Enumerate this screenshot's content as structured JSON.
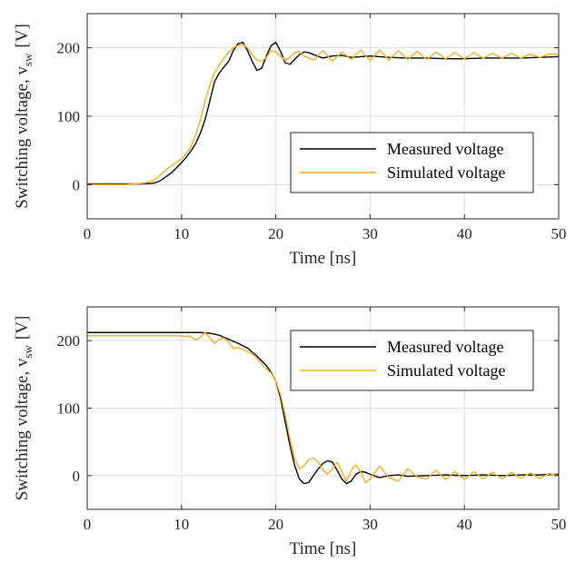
{
  "chart_data": [
    {
      "type": "line",
      "xlabel": "Time [ns]",
      "ylabel": "Switching voltage, v",
      "ylabel_sub": "sw",
      "ylabel_unit": "[V]",
      "xlim": [
        0,
        50
      ],
      "ylim": [
        -50,
        250
      ],
      "xticks": [
        0,
        10,
        20,
        30,
        40,
        50
      ],
      "yticks": [
        0,
        100,
        200
      ],
      "grid": true,
      "legend_position": "lower-right",
      "series": [
        {
          "name": "Measured voltage",
          "color": "#000000",
          "x": [
            0,
            2,
            4,
            6,
            7,
            7.5,
            8,
            8.5,
            9,
            9.5,
            10,
            10.5,
            11,
            11.5,
            12,
            12.5,
            13,
            13.5,
            14,
            14.5,
            15,
            15.5,
            16,
            16.5,
            17,
            17.5,
            18,
            18.5,
            19,
            19.5,
            20,
            20.5,
            21,
            21.5,
            22,
            22.5,
            23,
            23.5,
            24,
            25,
            26,
            27,
            28,
            30,
            32,
            34,
            36,
            38,
            40,
            42,
            44,
            46,
            48,
            50
          ],
          "y": [
            1,
            1,
            1,
            1,
            2,
            4,
            8,
            13,
            18,
            25,
            32,
            40,
            49,
            60,
            75,
            95,
            122,
            150,
            163,
            172,
            180,
            196,
            206,
            208,
            196,
            180,
            167,
            170,
            188,
            203,
            208,
            195,
            178,
            176,
            183,
            190,
            194,
            193,
            190,
            185,
            188,
            189,
            186,
            188,
            186,
            185,
            185,
            184,
            184,
            185,
            185,
            185,
            186,
            187
          ]
        },
        {
          "name": "Simulated voltage",
          "color": "#EDB120",
          "x": [
            0,
            2,
            4,
            6,
            7,
            7.5,
            8,
            8.5,
            9,
            9.5,
            10,
            10.5,
            11,
            11.5,
            12,
            12.5,
            13,
            13.5,
            14,
            14.5,
            15,
            15.5,
            16,
            16.5,
            17,
            17.5,
            18,
            18.5,
            19,
            19.5,
            20,
            20.5,
            21,
            21.5,
            22,
            22.5,
            23,
            24,
            25,
            26,
            27,
            28,
            29,
            30,
            31,
            32,
            33,
            34,
            35,
            36,
            37,
            38,
            39,
            40,
            41,
            42,
            43,
            44,
            45,
            46,
            47,
            48,
            49,
            50
          ],
          "y": [
            0,
            0,
            0,
            2,
            6,
            11,
            17,
            23,
            28,
            33,
            38,
            45,
            56,
            72,
            95,
            122,
            145,
            163,
            175,
            185,
            193,
            200,
            203,
            205,
            200,
            190,
            182,
            180,
            186,
            196,
            194,
            188,
            182,
            186,
            193,
            195,
            188,
            182,
            196,
            180,
            194,
            183,
            197,
            181,
            197,
            182,
            196,
            183,
            195,
            183,
            194,
            184,
            193,
            184,
            193,
            185,
            192,
            185,
            192,
            185,
            191,
            186,
            191,
            190
          ]
        }
      ]
    },
    {
      "type": "line",
      "xlabel": "Time [ns]",
      "ylabel": "Switching voltage, v",
      "ylabel_sub": "sw",
      "ylabel_unit": "[V]",
      "xlim": [
        0,
        50
      ],
      "ylim": [
        -50,
        250
      ],
      "xticks": [
        0,
        10,
        20,
        30,
        40,
        50
      ],
      "yticks": [
        0,
        100,
        200
      ],
      "grid": true,
      "legend_position": "top-right",
      "series": [
        {
          "name": "Measured voltage",
          "color": "#000000",
          "x": [
            0,
            2,
            4,
            6,
            8,
            10,
            12,
            13,
            14,
            15,
            16,
            17,
            18,
            19,
            19.5,
            20,
            20.5,
            21,
            21.5,
            22,
            22.5,
            23,
            23.5,
            24,
            24.5,
            25,
            25.5,
            26,
            26.5,
            27,
            27.5,
            28,
            28.5,
            29,
            29.5,
            30,
            31,
            32,
            33,
            34,
            36,
            38,
            40,
            42,
            44,
            46,
            48,
            50
          ],
          "y": [
            212,
            212,
            212,
            212,
            212,
            212,
            212,
            211,
            208,
            202,
            196,
            189,
            177,
            163,
            153,
            140,
            115,
            80,
            45,
            15,
            -5,
            -12,
            -10,
            0,
            10,
            18,
            22,
            20,
            8,
            -5,
            -12,
            -8,
            2,
            6,
            5,
            2,
            -3,
            0,
            1,
            -1,
            0,
            1,
            0,
            1,
            0,
            1,
            1,
            2
          ]
        },
        {
          "name": "Simulated voltage",
          "color": "#EDB120",
          "x": [
            0,
            2,
            4,
            6,
            8,
            10,
            11,
            11.5,
            12,
            12.5,
            13,
            13.5,
            14,
            14.5,
            15,
            15.5,
            16,
            16.5,
            17,
            17.5,
            18,
            18.5,
            19,
            19.5,
            20,
            20.5,
            21,
            21.5,
            22,
            22.5,
            23,
            23.5,
            24,
            24.5,
            25,
            25.5,
            26,
            26.5,
            27,
            27.5,
            28,
            28.5,
            29,
            29.5,
            30,
            31,
            32,
            33,
            34,
            35,
            36,
            37,
            38,
            39,
            40,
            41,
            42,
            43,
            44,
            45,
            46,
            47,
            48,
            49,
            50
          ],
          "y": [
            207,
            207,
            207,
            207,
            207,
            207,
            206,
            201,
            205,
            212,
            204,
            196,
            202,
            204,
            198,
            188,
            190,
            187,
            184,
            180,
            174,
            165,
            158,
            152,
            140,
            120,
            90,
            55,
            25,
            10,
            14,
            24,
            26,
            20,
            8,
            2,
            10,
            20,
            6,
            -8,
            8,
            16,
            5,
            -10,
            -5,
            14,
            -3,
            -8,
            10,
            -2,
            -5,
            8,
            -6,
            6,
            -6,
            6,
            -5,
            5,
            -5,
            5,
            -4,
            4,
            -4,
            3,
            0
          ]
        }
      ]
    }
  ]
}
